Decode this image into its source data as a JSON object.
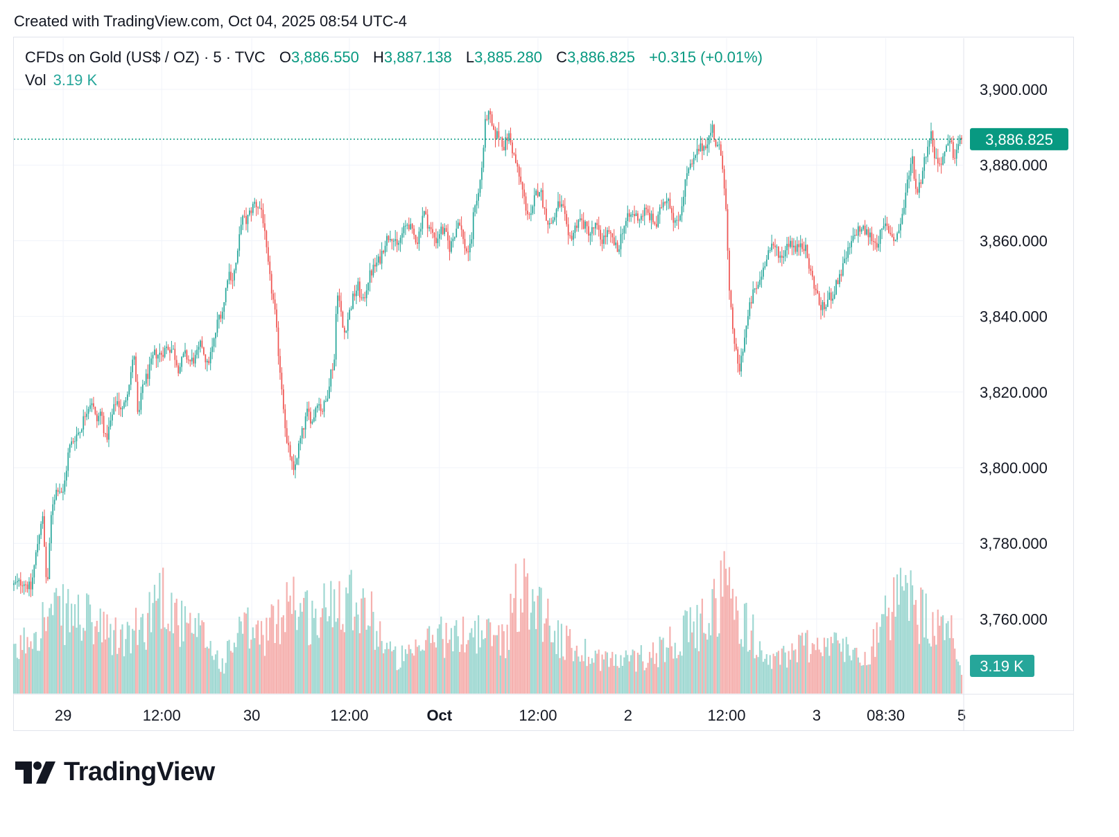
{
  "header": {
    "created_text": "Created with TradingView.com, Oct 04, 2025 08:54 UTC-4"
  },
  "legend": {
    "symbol": "CFDs on Gold (US$ / OZ) · 5 · TVC",
    "o_label": "O",
    "o_value": "3,886.550",
    "h_label": "H",
    "h_value": "3,887.138",
    "l_label": "L",
    "l_value": "3,885.280",
    "c_label": "C",
    "c_value": "3,886.825",
    "change": "+0.315 (+0.01%)",
    "vol_label": "Vol",
    "vol_value": "3.19 K"
  },
  "brand": {
    "name": "TradingView"
  },
  "colors": {
    "up": "#26a69a",
    "down": "#ef5350",
    "up_text": "#089981",
    "vol_up": "#9fd8d2",
    "vol_down": "#f5b0ae",
    "grid": "#f0f3fa",
    "axis_text": "#131722"
  },
  "chart_data": {
    "type": "candlestick",
    "title": "CFDs on Gold (US$ / OZ) · 5 · TVC",
    "interval": "5",
    "y_ticks": [
      3760,
      3780,
      3800,
      3820,
      3840,
      3860,
      3880,
      3900
    ],
    "y_tick_labels": [
      "3,760.000",
      "3,780.000",
      "3,800.000",
      "3,820.000",
      "3,840.000",
      "3,860.000",
      "3,880.000",
      "3,900.000"
    ],
    "ylim": [
      3737,
      3910
    ],
    "x_ticks": [
      {
        "label": "29",
        "bold": false,
        "t": 0.052
      },
      {
        "label": "12:00",
        "bold": false,
        "t": 0.156
      },
      {
        "label": "30",
        "bold": false,
        "t": 0.251
      },
      {
        "label": "12:00",
        "bold": false,
        "t": 0.354
      },
      {
        "label": "Oct",
        "bold": true,
        "t": 0.449
      },
      {
        "label": "12:00",
        "bold": false,
        "t": 0.553
      },
      {
        "label": "2",
        "bold": false,
        "t": 0.648
      },
      {
        "label": "12:00",
        "bold": false,
        "t": 0.752
      },
      {
        "label": "3",
        "bold": false,
        "t": 0.847
      },
      {
        "label": "08:30",
        "bold": false,
        "t": 0.92
      },
      {
        "label": "5",
        "bold": false,
        "t": 1.0
      }
    ],
    "last_price": 3886.825,
    "last_price_label": "3,886.825",
    "last_volume_label": "3.19 K",
    "price_path": [
      [
        0.0,
        3769
      ],
      [
        0.01,
        3770
      ],
      [
        0.018,
        3768
      ],
      [
        0.025,
        3780
      ],
      [
        0.03,
        3788
      ],
      [
        0.035,
        3767
      ],
      [
        0.04,
        3790
      ],
      [
        0.046,
        3795
      ],
      [
        0.052,
        3793
      ],
      [
        0.058,
        3805
      ],
      [
        0.064,
        3808
      ],
      [
        0.07,
        3810
      ],
      [
        0.076,
        3815
      ],
      [
        0.082,
        3818
      ],
      [
        0.087,
        3812
      ],
      [
        0.092,
        3815
      ],
      [
        0.097,
        3807
      ],
      [
        0.102,
        3812
      ],
      [
        0.108,
        3818
      ],
      [
        0.115,
        3815
      ],
      [
        0.121,
        3822
      ],
      [
        0.127,
        3830
      ],
      [
        0.131,
        3812
      ],
      [
        0.136,
        3822
      ],
      [
        0.142,
        3825
      ],
      [
        0.148,
        3830
      ],
      [
        0.155,
        3830
      ],
      [
        0.162,
        3832
      ],
      [
        0.168,
        3831
      ],
      [
        0.174,
        3826
      ],
      [
        0.18,
        3830
      ],
      [
        0.186,
        3828
      ],
      [
        0.192,
        3829
      ],
      [
        0.198,
        3833
      ],
      [
        0.204,
        3827
      ],
      [
        0.21,
        3832
      ],
      [
        0.216,
        3840
      ],
      [
        0.221,
        3842
      ],
      [
        0.226,
        3852
      ],
      [
        0.231,
        3850
      ],
      [
        0.236,
        3856
      ],
      [
        0.24,
        3866
      ],
      [
        0.245,
        3865
      ],
      [
        0.25,
        3868
      ],
      [
        0.254,
        3870
      ],
      [
        0.258,
        3869
      ],
      [
        0.262,
        3868
      ],
      [
        0.266,
        3858
      ],
      [
        0.27,
        3850
      ],
      [
        0.275,
        3842
      ],
      [
        0.28,
        3828
      ],
      [
        0.284,
        3818
      ],
      [
        0.288,
        3806
      ],
      [
        0.292,
        3803
      ],
      [
        0.295,
        3798
      ],
      [
        0.3,
        3805
      ],
      [
        0.305,
        3810
      ],
      [
        0.31,
        3815
      ],
      [
        0.315,
        3812
      ],
      [
        0.32,
        3818
      ],
      [
        0.325,
        3815
      ],
      [
        0.33,
        3818
      ],
      [
        0.334,
        3825
      ],
      [
        0.338,
        3828
      ],
      [
        0.341,
        3848
      ],
      [
        0.344,
        3843
      ],
      [
        0.348,
        3835
      ],
      [
        0.353,
        3840
      ],
      [
        0.358,
        3845
      ],
      [
        0.363,
        3848
      ],
      [
        0.368,
        3843
      ],
      [
        0.374,
        3850
      ],
      [
        0.38,
        3853
      ],
      [
        0.386,
        3855
      ],
      [
        0.392,
        3860
      ],
      [
        0.398,
        3862
      ],
      [
        0.404,
        3858
      ],
      [
        0.41,
        3862
      ],
      [
        0.416,
        3865
      ],
      [
        0.42,
        3862
      ],
      [
        0.426,
        3860
      ],
      [
        0.432,
        3868
      ],
      [
        0.436,
        3865
      ],
      [
        0.441,
        3862
      ],
      [
        0.446,
        3860
      ],
      [
        0.45,
        3863
      ],
      [
        0.455,
        3862
      ],
      [
        0.46,
        3858
      ],
      [
        0.465,
        3862
      ],
      [
        0.47,
        3866
      ],
      [
        0.474,
        3860
      ],
      [
        0.478,
        3857
      ],
      [
        0.482,
        3858
      ],
      [
        0.486,
        3870
      ],
      [
        0.49,
        3872
      ],
      [
        0.494,
        3880
      ],
      [
        0.498,
        3893
      ],
      [
        0.502,
        3893
      ],
      [
        0.506,
        3888
      ],
      [
        0.512,
        3888
      ],
      [
        0.517,
        3885
      ],
      [
        0.522,
        3888
      ],
      [
        0.527,
        3883
      ],
      [
        0.532,
        3878
      ],
      [
        0.536,
        3874
      ],
      [
        0.541,
        3868
      ],
      [
        0.546,
        3866
      ],
      [
        0.55,
        3872
      ],
      [
        0.555,
        3874
      ],
      [
        0.56,
        3868
      ],
      [
        0.565,
        3864
      ],
      [
        0.57,
        3866
      ],
      [
        0.575,
        3870
      ],
      [
        0.58,
        3868
      ],
      [
        0.585,
        3860
      ],
      [
        0.59,
        3862
      ],
      [
        0.596,
        3866
      ],
      [
        0.602,
        3864
      ],
      [
        0.608,
        3862
      ],
      [
        0.614,
        3864
      ],
      [
        0.62,
        3860
      ],
      [
        0.626,
        3862
      ],
      [
        0.632,
        3860
      ],
      [
        0.637,
        3857
      ],
      [
        0.642,
        3863
      ],
      [
        0.648,
        3866
      ],
      [
        0.654,
        3867
      ],
      [
        0.66,
        3866
      ],
      [
        0.666,
        3868
      ],
      [
        0.672,
        3866
      ],
      [
        0.678,
        3864
      ],
      [
        0.684,
        3870
      ],
      [
        0.69,
        3872
      ],
      [
        0.696,
        3866
      ],
      [
        0.7,
        3864
      ],
      [
        0.705,
        3870
      ],
      [
        0.71,
        3878
      ],
      [
        0.716,
        3880
      ],
      [
        0.722,
        3884
      ],
      [
        0.728,
        3885
      ],
      [
        0.733,
        3887
      ],
      [
        0.737,
        3890
      ],
      [
        0.741,
        3885
      ],
      [
        0.745,
        3884
      ],
      [
        0.748,
        3880
      ],
      [
        0.751,
        3870
      ],
      [
        0.755,
        3845
      ],
      [
        0.758,
        3838
      ],
      [
        0.762,
        3830
      ],
      [
        0.765,
        3825
      ],
      [
        0.768,
        3830
      ],
      [
        0.772,
        3836
      ],
      [
        0.776,
        3842
      ],
      [
        0.78,
        3846
      ],
      [
        0.785,
        3848
      ],
      [
        0.79,
        3852
      ],
      [
        0.795,
        3857
      ],
      [
        0.8,
        3858
      ],
      [
        0.805,
        3858
      ],
      [
        0.81,
        3855
      ],
      [
        0.815,
        3859
      ],
      [
        0.82,
        3860
      ],
      [
        0.825,
        3857
      ],
      [
        0.83,
        3860
      ],
      [
        0.835,
        3858
      ],
      [
        0.84,
        3852
      ],
      [
        0.845,
        3848
      ],
      [
        0.85,
        3843
      ],
      [
        0.855,
        3842
      ],
      [
        0.86,
        3845
      ],
      [
        0.865,
        3846
      ],
      [
        0.87,
        3850
      ],
      [
        0.875,
        3853
      ],
      [
        0.88,
        3857
      ],
      [
        0.885,
        3860
      ],
      [
        0.89,
        3863
      ],
      [
        0.895,
        3863
      ],
      [
        0.9,
        3862
      ],
      [
        0.905,
        3861
      ],
      [
        0.91,
        3859
      ],
      [
        0.915,
        3862
      ],
      [
        0.92,
        3864
      ],
      [
        0.925,
        3862
      ],
      [
        0.93,
        3860
      ],
      [
        0.935,
        3864
      ],
      [
        0.94,
        3870
      ],
      [
        0.944,
        3878
      ],
      [
        0.948,
        3882
      ],
      [
        0.952,
        3873
      ],
      [
        0.956,
        3875
      ],
      [
        0.96,
        3880
      ],
      [
        0.964,
        3886
      ],
      [
        0.968,
        3888
      ],
      [
        0.972,
        3882
      ],
      [
        0.976,
        3880
      ],
      [
        0.98,
        3882
      ],
      [
        0.984,
        3884
      ],
      [
        0.988,
        3886
      ],
      [
        0.992,
        3882
      ],
      [
        0.996,
        3885
      ],
      [
        1.0,
        3886.8
      ]
    ],
    "volume_profile": [
      [
        0.0,
        0.25
      ],
      [
        0.02,
        0.45
      ],
      [
        0.04,
        0.55
      ],
      [
        0.06,
        0.55
      ],
      [
        0.08,
        0.5
      ],
      [
        0.1,
        0.4
      ],
      [
        0.12,
        0.38
      ],
      [
        0.14,
        0.5
      ],
      [
        0.15,
        0.7
      ],
      [
        0.16,
        0.68
      ],
      [
        0.18,
        0.45
      ],
      [
        0.2,
        0.4
      ],
      [
        0.22,
        0.2
      ],
      [
        0.24,
        0.45
      ],
      [
        0.26,
        0.4
      ],
      [
        0.28,
        0.5
      ],
      [
        0.29,
        0.75
      ],
      [
        0.3,
        0.6
      ],
      [
        0.32,
        0.5
      ],
      [
        0.34,
        0.7
      ],
      [
        0.36,
        0.7
      ],
      [
        0.38,
        0.5
      ],
      [
        0.4,
        0.25
      ],
      [
        0.42,
        0.25
      ],
      [
        0.44,
        0.38
      ],
      [
        0.45,
        0.45
      ],
      [
        0.46,
        0.35
      ],
      [
        0.48,
        0.45
      ],
      [
        0.5,
        0.4
      ],
      [
        0.52,
        0.4
      ],
      [
        0.53,
        0.7
      ],
      [
        0.55,
        0.7
      ],
      [
        0.56,
        0.55
      ],
      [
        0.58,
        0.35
      ],
      [
        0.6,
        0.3
      ],
      [
        0.62,
        0.25
      ],
      [
        0.64,
        0.22
      ],
      [
        0.66,
        0.25
      ],
      [
        0.68,
        0.3
      ],
      [
        0.7,
        0.4
      ],
      [
        0.72,
        0.45
      ],
      [
        0.74,
        0.6
      ],
      [
        0.75,
        0.8
      ],
      [
        0.76,
        0.6
      ],
      [
        0.78,
        0.4
      ],
      [
        0.8,
        0.2
      ],
      [
        0.82,
        0.3
      ],
      [
        0.84,
        0.35
      ],
      [
        0.86,
        0.35
      ],
      [
        0.88,
        0.3
      ],
      [
        0.9,
        0.28
      ],
      [
        0.92,
        0.5
      ],
      [
        0.94,
        0.7
      ],
      [
        0.95,
        0.6
      ],
      [
        0.97,
        0.45
      ],
      [
        0.99,
        0.4
      ],
      [
        1.0,
        0.15
      ]
    ]
  }
}
